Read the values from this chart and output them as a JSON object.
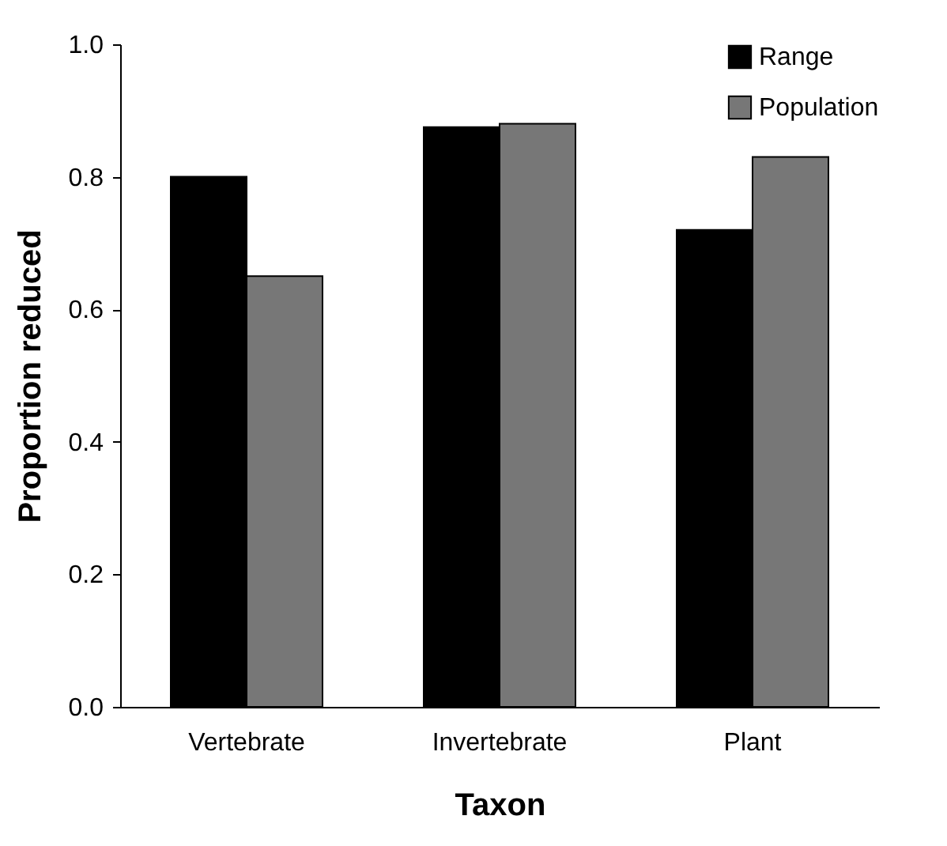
{
  "chart_data": {
    "type": "bar",
    "xlabel": "Taxon",
    "ylabel": "Proportion reduced",
    "categories": [
      "Vertebrate",
      "Invertebrate",
      "Plant"
    ],
    "series": [
      {
        "name": "Range",
        "color": "#000000",
        "values": [
          0.8,
          0.875,
          0.72
        ]
      },
      {
        "name": "Population",
        "color": "#777777",
        "values": [
          0.65,
          0.88,
          0.83
        ]
      }
    ],
    "ylim": [
      0,
      1
    ],
    "yticks": [
      {
        "value": 0,
        "label": "0.0"
      },
      {
        "value": 0.2,
        "label": "0.2"
      },
      {
        "value": 0.4,
        "label": "0.4"
      },
      {
        "value": 0.6,
        "label": "0.6"
      },
      {
        "value": 0.8,
        "label": "0.8"
      },
      {
        "value": 1,
        "label": "1.0"
      }
    ],
    "grid": false,
    "legend": "top right"
  }
}
